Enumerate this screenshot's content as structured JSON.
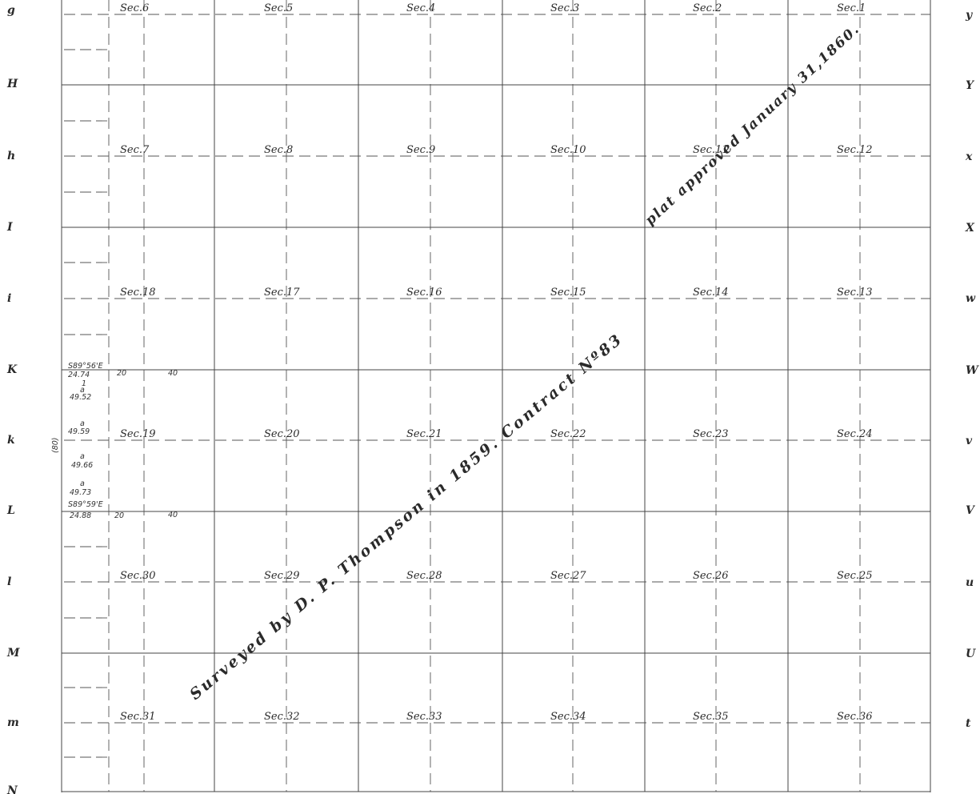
{
  "left_letters": [
    "g",
    "H",
    "h",
    "I",
    "i",
    "K",
    "k",
    "L",
    "l",
    "M",
    "m",
    "N"
  ],
  "right_letters": [
    "y",
    "Y",
    "x",
    "X",
    "w",
    "W",
    "v",
    "V",
    "u",
    "U",
    "t"
  ],
  "sections": [
    [
      "Sec.6",
      "Sec.5",
      "Sec.4",
      "Sec.3",
      "Sec.2",
      "Sec.1"
    ],
    [
      "Sec.7",
      "Sec.8",
      "Sec.9",
      "Sec.10",
      "Sec.11",
      "Sec.12"
    ],
    [
      "Sec.18",
      "Sec.17",
      "Sec.16",
      "Sec.15",
      "Sec.14",
      "Sec.13"
    ],
    [
      "Sec.19",
      "Sec.20",
      "Sec.21",
      "Sec.22",
      "Sec.23",
      "Sec.24"
    ],
    [
      "Sec.30",
      "Sec.29",
      "Sec.28",
      "Sec.27",
      "Sec.26",
      "Sec.25"
    ],
    [
      "Sec.31",
      "Sec.32",
      "Sec.33",
      "Sec.34",
      "Sec.35",
      "Sec.36"
    ]
  ],
  "notes": {
    "bearing_top": "S89°56'E",
    "dist_top": "24.74",
    "lot_mark_1": "1",
    "lot_a_1": "a",
    "dist_49_52": "49.52",
    "lot_a_2": "a",
    "dist_49_59": "49.59",
    "lot_a_3": "a",
    "dist_49_66": "49.66",
    "lot_a_4": "a",
    "dist_49_73": "49.73",
    "bearing_bottom": "S89°59'E",
    "dist_bottom": "24.88",
    "chain_20_top": "20",
    "chain_40_top": "40",
    "chain_20_bottom": "20",
    "chain_40_bottom": "40",
    "side_80": "(80)"
  },
  "inscription": {
    "part1": "Surveyed by D. P. Thompson in 1859. Contract Nº83",
    "part2": "plat approved January 31,1860."
  }
}
